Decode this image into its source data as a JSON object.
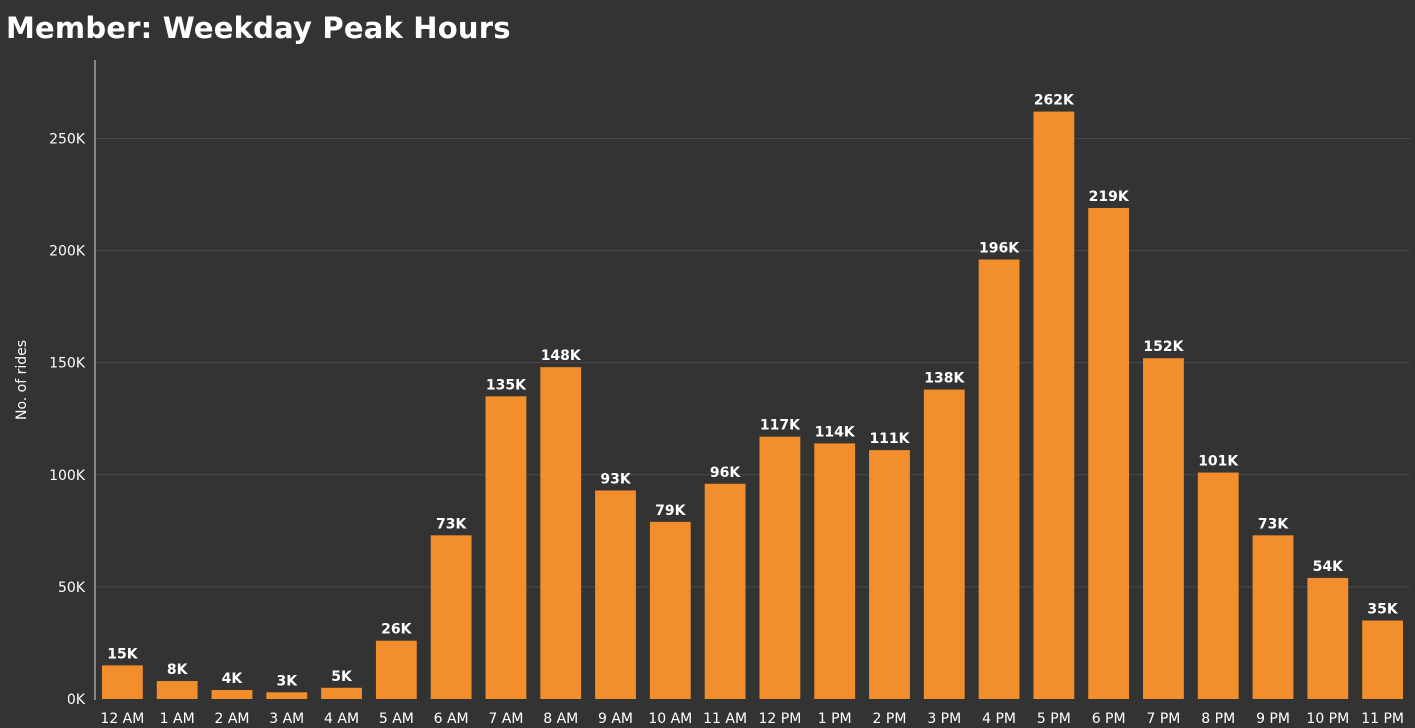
{
  "chart_data": {
    "type": "bar",
    "title": "Member: Weekday Peak Hours",
    "xlabel": "",
    "ylabel": "No. of rides",
    "categories": [
      "12 AM",
      "1 AM",
      "2 AM",
      "3 AM",
      "4 AM",
      "5 AM",
      "6 AM",
      "7 AM",
      "8 AM",
      "9 AM",
      "10 AM",
      "11 AM",
      "12 PM",
      "1 PM",
      "2 PM",
      "3 PM",
      "4 PM",
      "5 PM",
      "6 PM",
      "7 PM",
      "8 PM",
      "9 PM",
      "10 PM",
      "11 PM"
    ],
    "values": [
      15000,
      8000,
      4000,
      3000,
      5000,
      26000,
      73000,
      135000,
      148000,
      93000,
      79000,
      96000,
      117000,
      114000,
      111000,
      138000,
      196000,
      262000,
      219000,
      152000,
      101000,
      73000,
      54000,
      35000
    ],
    "value_labels": [
      "15K",
      "8K",
      "4K",
      "3K",
      "5K",
      "26K",
      "73K",
      "135K",
      "148K",
      "93K",
      "79K",
      "96K",
      "117K",
      "114K",
      "111K",
      "138K",
      "196K",
      "262K",
      "219K",
      "152K",
      "101K",
      "73K",
      "54K",
      "35K"
    ],
    "y_ticks": [
      0,
      50000,
      100000,
      150000,
      200000,
      250000
    ],
    "y_tick_labels": [
      "0K",
      "50K",
      "100K",
      "150K",
      "200K",
      "250K"
    ],
    "ylim": [
      0,
      285000
    ],
    "grid": true,
    "legend": "none",
    "colors": {
      "background": "#333333",
      "bar": "#F28E2B",
      "gridline": "#4a4a4a",
      "axis": "#dddddd",
      "text": "#ffffff"
    }
  }
}
